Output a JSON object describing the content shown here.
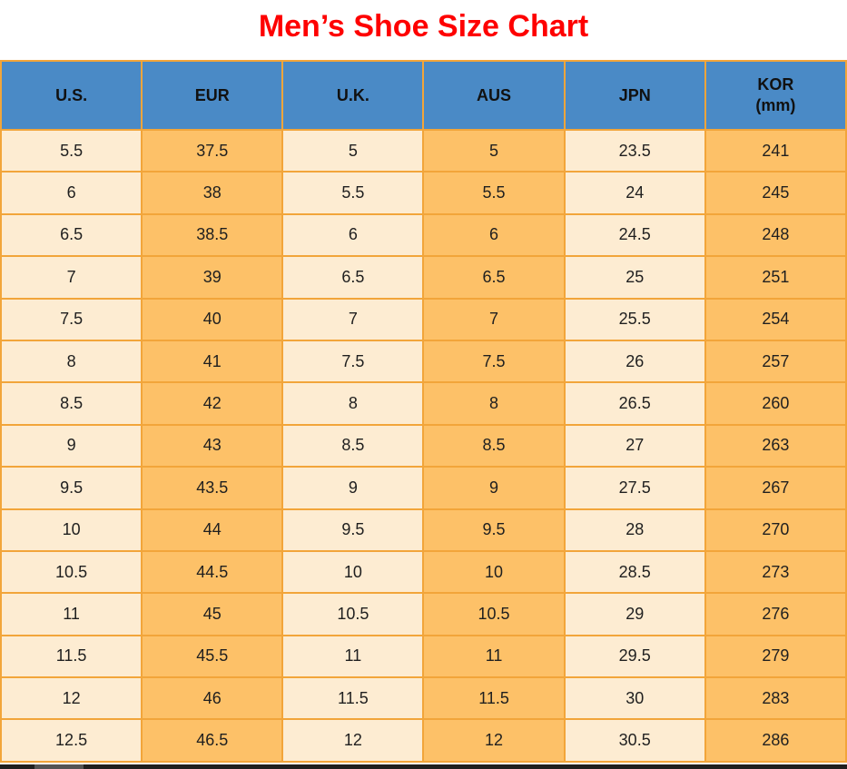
{
  "title": "Men’s Shoe Size Chart",
  "colors": {
    "title_red": "#fe0000",
    "header_blue": "#4a8ac6",
    "cell_cream": "#fdecd2",
    "cell_orange": "#fdc168",
    "grid_border": "#f2a53a",
    "scrollbar_track": "#1f1f1f",
    "scrollbar_thumb": "#545454"
  },
  "table": {
    "header_lines": [
      [
        "U.S."
      ],
      [
        "EUR"
      ],
      [
        "U.K."
      ],
      [
        "AUS"
      ],
      [
        "JPN"
      ],
      [
        "KOR",
        "(mm)"
      ]
    ]
  },
  "chart_data": {
    "type": "table",
    "title": "Men’s Shoe Size Chart",
    "columns": [
      "U.S.",
      "EUR",
      "U.K.",
      "AUS",
      "JPN",
      "KOR (mm)"
    ],
    "rows": [
      [
        "5.5",
        "37.5",
        "5",
        "5",
        "23.5",
        "241"
      ],
      [
        "6",
        "38",
        "5.5",
        "5.5",
        "24",
        "245"
      ],
      [
        "6.5",
        "38.5",
        "6",
        "6",
        "24.5",
        "248"
      ],
      [
        "7",
        "39",
        "6.5",
        "6.5",
        "25",
        "251"
      ],
      [
        "7.5",
        "40",
        "7",
        "7",
        "25.5",
        "254"
      ],
      [
        "8",
        "41",
        "7.5",
        "7.5",
        "26",
        "257"
      ],
      [
        "8.5",
        "42",
        "8",
        "8",
        "26.5",
        "260"
      ],
      [
        "9",
        "43",
        "8.5",
        "8.5",
        "27",
        "263"
      ],
      [
        "9.5",
        "43.5",
        "9",
        "9",
        "27.5",
        "267"
      ],
      [
        "10",
        "44",
        "9.5",
        "9.5",
        "28",
        "270"
      ],
      [
        "10.5",
        "44.5",
        "10",
        "10",
        "28.5",
        "273"
      ],
      [
        "11",
        "45",
        "10.5",
        "10.5",
        "29",
        "276"
      ],
      [
        "11.5",
        "45.5",
        "11",
        "11",
        "29.5",
        "279"
      ],
      [
        "12",
        "46",
        "11.5",
        "11.5",
        "30",
        "283"
      ],
      [
        "12.5",
        "46.5",
        "12",
        "12",
        "30.5",
        "286"
      ]
    ]
  }
}
